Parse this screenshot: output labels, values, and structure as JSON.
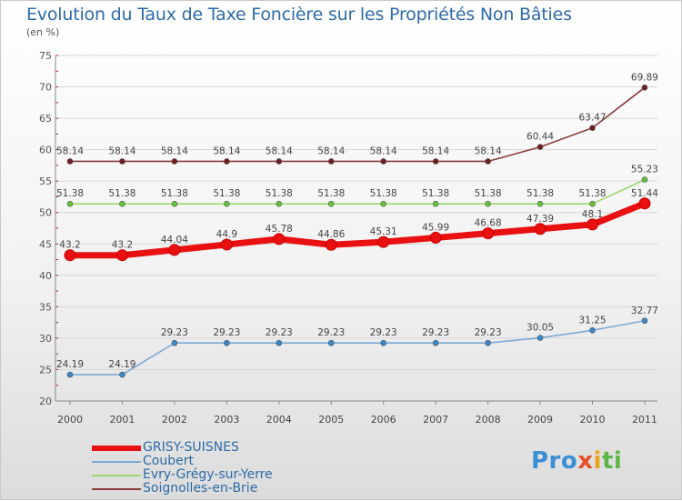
{
  "chart_data": {
    "type": "line",
    "title": "Evolution du Taux de Taxe Foncière sur les Propriétés Non Bâties",
    "unit_label": "(en %)",
    "xlabel": "",
    "ylabel": "",
    "categories": [
      "2000",
      "2001",
      "2002",
      "2003",
      "2004",
      "2005",
      "2006",
      "2007",
      "2008",
      "2009",
      "2010",
      "2011"
    ],
    "ylim": [
      20,
      75
    ],
    "yticks": [
      20,
      25,
      30,
      35,
      40,
      45,
      50,
      55,
      60,
      65,
      70,
      75
    ],
    "grid": true,
    "legend_position": "bottom-left",
    "series": [
      {
        "name": "GRISY-SUISNES",
        "color": "#e81010",
        "marker_color": "#e81010",
        "values": [
          43.2,
          43.2,
          44.04,
          44.9,
          45.78,
          44.86,
          45.31,
          45.99,
          46.68,
          47.39,
          48.1,
          51.44
        ],
        "labels": [
          "43.2",
          "43.2",
          "44.04",
          "44.9",
          "45.78",
          "44.86",
          "45.31",
          "45.99",
          "46.68",
          "47.39",
          "48.1",
          "51.44"
        ]
      },
      {
        "name": "Coubert",
        "color": "#7aaad6",
        "marker_color": "#3a88c8",
        "values": [
          24.19,
          24.19,
          29.23,
          29.23,
          29.23,
          29.23,
          29.23,
          29.23,
          29.23,
          30.05,
          31.25,
          32.77
        ],
        "labels": [
          "24.19",
          "24.19",
          "29.23",
          "29.23",
          "29.23",
          "29.23",
          "29.23",
          "29.23",
          "29.23",
          "30.05",
          "31.25",
          "32.77"
        ]
      },
      {
        "name": "Evry-Grégy-sur-Yerre",
        "color": "#9bd86e",
        "marker_color": "#66c23a",
        "values": [
          51.38,
          51.38,
          51.38,
          51.38,
          51.38,
          51.38,
          51.38,
          51.38,
          51.38,
          51.38,
          51.38,
          55.23
        ],
        "labels": [
          "51.38",
          "51.38",
          "51.38",
          "51.38",
          "51.38",
          "51.38",
          "51.38",
          "51.38",
          "51.38",
          "51.38",
          "51.38",
          "55.23"
        ]
      },
      {
        "name": "Soignolles-en-Brie",
        "color": "#8a3a3a",
        "marker_color": "#6e1e1e",
        "values": [
          58.14,
          58.14,
          58.14,
          58.14,
          58.14,
          58.14,
          58.14,
          58.14,
          58.14,
          60.44,
          63.47,
          69.89
        ],
        "labels": [
          "58.14",
          "58.14",
          "58.14",
          "58.14",
          "58.14",
          "58.14",
          "58.14",
          "58.14",
          "58.14",
          "60.44",
          "63.47",
          "69.89"
        ]
      }
    ]
  },
  "logo": {
    "p1": "Pro",
    "p2": "x",
    "p3": "i",
    "p4": "ti"
  }
}
